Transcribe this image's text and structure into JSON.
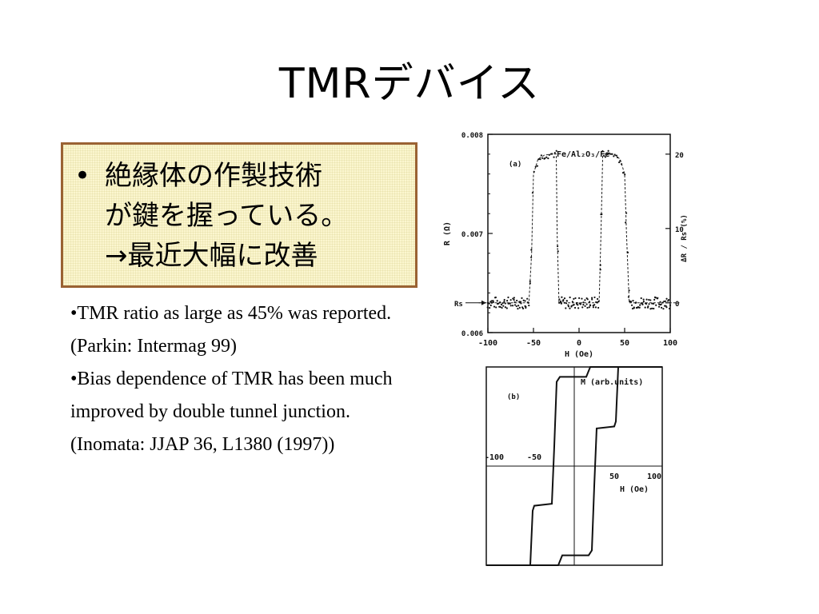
{
  "slide": {
    "title": "TMRデバイス"
  },
  "callout": {
    "bullet": "•",
    "text": "絶縁体の作製技術\nが鍵を握っている。\n→最近大幅に改善"
  },
  "notes": [
    "•TMR ratio as large as 45% was reported. (Parkin: Intermag 99)",
    "•Bias dependence of TMR has been much improved by double tunnel junction. (Inomata: JJAP 36, L1380 (1997))"
  ],
  "chart_data": [
    {
      "type": "scatter",
      "panel_label": "(a)",
      "title": "Fe/Al₂O₃/Fe",
      "xlabel": "H  (Oe)",
      "ylabel": "R (Ω)",
      "y2label": "ΔR / Rs  (%)",
      "xlim": [
        -100,
        100
      ],
      "ylim": [
        0.006,
        0.008
      ],
      "x_ticks": [
        "-100",
        "-50",
        "0",
        "50",
        "100"
      ],
      "y_ticks": [
        "0.006",
        "0.007",
        "0.008"
      ],
      "y2_ticks": [
        "0",
        "10",
        "20"
      ],
      "rs_label": "Rs",
      "grid": false,
      "series": [
        {
          "name": "",
          "style": "dotted-loop",
          "x": [
            -110,
            -55,
            -52,
            -50,
            -45,
            -38,
            -30,
            -25,
            -24,
            -22,
            22,
            24,
            26,
            30,
            38,
            45,
            50,
            52,
            55,
            110
          ],
          "y": [
            0.0063,
            0.0063,
            0.0068,
            0.0076,
            0.00775,
            0.00779,
            0.0078,
            0.0078,
            0.007,
            0.0063,
            0.0063,
            0.007,
            0.0078,
            0.00781,
            0.0078,
            0.00775,
            0.0076,
            0.007,
            0.0063,
            0.0063
          ]
        }
      ]
    },
    {
      "type": "line",
      "panel_label": "(b)",
      "ylabel": "M  (arb.units)",
      "xlabel": "H  (Oe)",
      "xlim": [
        -110,
        110
      ],
      "ylim": [
        -1,
        1
      ],
      "x_ticks": [
        "-100",
        "-50",
        "50",
        "100"
      ],
      "grid": false,
      "series": [
        {
          "name": "",
          "x": [
            -110,
            -55,
            -52,
            -50,
            -28,
            -25,
            -22,
            -18,
            15,
            20,
            110
          ],
          "y": [
            -1.0,
            -1.0,
            -0.45,
            -0.4,
            -0.38,
            0.2,
            0.85,
            0.9,
            0.9,
            1.0,
            1.0
          ]
        },
        {
          "name": "",
          "x": [
            110,
            55,
            52,
            50,
            28,
            25,
            22,
            18,
            -15,
            -20,
            -110
          ],
          "y": [
            1.0,
            1.0,
            0.45,
            0.4,
            0.38,
            -0.2,
            -0.85,
            -0.9,
            -0.9,
            -1.0,
            -1.0
          ]
        }
      ]
    }
  ]
}
